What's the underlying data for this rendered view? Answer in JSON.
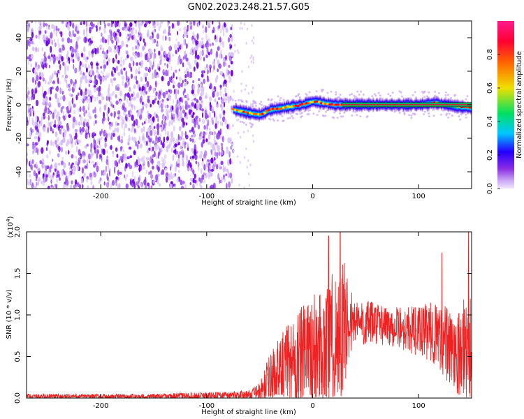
{
  "title": "GN02.2023.248.21.57.G05",
  "colors": {
    "background": "#ffffff",
    "noise": "#7a12e8",
    "snr_line": "#ee2222",
    "colormap": [
      "#f2e6ff",
      "#8a2be2",
      "#2200ff",
      "#00c8ff",
      "#00e060",
      "#f0e000",
      "#ff6600",
      "#ff0033",
      "#ff1a8c"
    ]
  },
  "chart_data": [
    {
      "type": "heatmap",
      "title": "GN02.2023.248.21.57.G05",
      "xlabel": "Height of straight line (km)",
      "ylabel": "Frequency (Hz)",
      "xlim": [
        -270,
        150
      ],
      "ylim": [
        -50,
        50
      ],
      "xticks": [
        "-200",
        "-100",
        "0",
        "100"
      ],
      "yticks": [
        "-40",
        "-20",
        "0",
        "20",
        "40"
      ],
      "noise_region_x": [
        -270,
        -75
      ],
      "ridge": {
        "x": [
          -75,
          -60,
          -50,
          -40,
          -30,
          -20,
          -10,
          0,
          10,
          20,
          30,
          50,
          80,
          100,
          115,
          125,
          135,
          150
        ],
        "freq_hz": [
          -3,
          -5,
          -6,
          -3,
          -2,
          -1,
          0,
          2,
          1,
          0,
          0,
          0,
          0,
          0,
          1,
          0,
          -1,
          -2
        ]
      },
      "colorbar": {
        "label": "Normalized spectral amplitude",
        "ticks": [
          "0.0",
          "0.2",
          "0.4",
          "0.6",
          "0.8"
        ],
        "range": [
          0,
          1
        ]
      },
      "grid": false
    },
    {
      "type": "line",
      "xlabel": "Height of straight line (km)",
      "ylabel": "SNR (10 * v/v)",
      "yscale_label": "(x10",
      "yscale_exp": "4",
      "xlim": [
        -270,
        150
      ],
      "ylim": [
        0,
        2.0
      ],
      "xticks": [
        "-200",
        "-100",
        "0",
        "100"
      ],
      "yticks": [
        "0.0",
        "0.5",
        "1.0",
        "1.5",
        "2.0"
      ],
      "envelope": {
        "x": [
          -270,
          -150,
          -60,
          -50,
          -40,
          -30,
          -20,
          -10,
          0,
          10,
          20,
          30,
          35,
          40,
          60,
          80,
          100,
          110,
          120,
          125,
          130,
          140,
          150
        ],
        "base": [
          0.02,
          0.02,
          0.04,
          0.08,
          0.2,
          0.3,
          0.45,
          0.5,
          0.55,
          0.6,
          0.7,
          0.8,
          0.95,
          0.9,
          0.9,
          0.85,
          0.8,
          0.8,
          0.75,
          0.65,
          0.6,
          0.55,
          0.7
        ],
        "spread": [
          0.03,
          0.03,
          0.05,
          0.1,
          0.35,
          0.45,
          0.55,
          0.6,
          0.7,
          0.75,
          0.85,
          0.9,
          0.4,
          0.3,
          0.25,
          0.25,
          0.3,
          0.35,
          0.4,
          0.5,
          0.45,
          0.55,
          0.8
        ]
      },
      "peaks": [
        {
          "x": 15,
          "y": 1.95
        },
        {
          "x": 26,
          "y": 2.0
        },
        {
          "x": 122,
          "y": 1.75
        },
        {
          "x": 147,
          "y": 2.0
        }
      ],
      "grid": false
    }
  ]
}
